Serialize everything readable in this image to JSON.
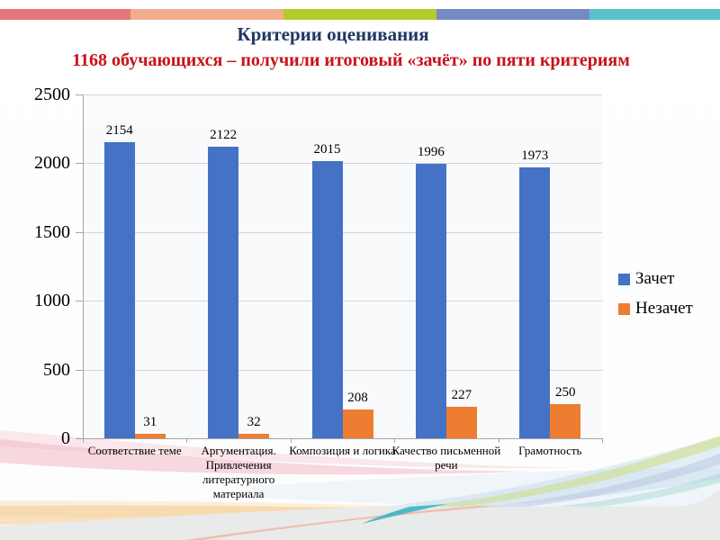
{
  "slide": {
    "title": "Критерии оценивания",
    "subtitle": "1168 обучающихся – получили итоговый «зачёт» по пяти критериям",
    "title_color": "#1f3864",
    "subtitle_color": "#c8121a",
    "top_strip_colors": [
      "#e5767d",
      "#f3ad8c",
      "#b4cb2d",
      "#7589c4",
      "#59c2c9"
    ]
  },
  "chart_data": {
    "type": "bar",
    "categories": [
      "Соответствие теме",
      "Аргументация. Привлечения литературного материала",
      "Композиция и логика",
      "Качество письменной речи",
      "Грамотность"
    ],
    "series": [
      {
        "name": "Зачет",
        "color": "#4472c4",
        "values": [
          2154,
          2122,
          2015,
          1996,
          1973
        ]
      },
      {
        "name": "Незачет",
        "color": "#ed7d31",
        "values": [
          31,
          32,
          208,
          227,
          250
        ]
      }
    ],
    "ylim": [
      0,
      2500
    ],
    "yticks": [
      0,
      500,
      1000,
      1500,
      2000,
      2500
    ],
    "grid": true,
    "data_labels": true,
    "legend_position": "right",
    "axis_color": "#a6a6a6",
    "gridline_color": "#d6d6d6"
  }
}
